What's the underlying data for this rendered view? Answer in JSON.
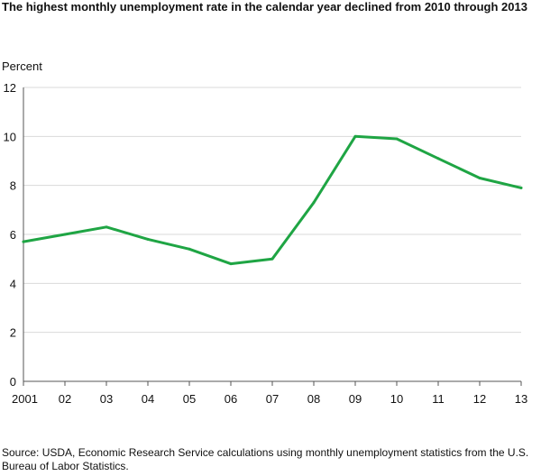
{
  "title": "The highest monthly unemployment rate in the calendar year declined from 2010 through 2013",
  "ylabel": "Percent",
  "source": "Source: USDA, Economic Research Service calculations using monthly unemployment statistics from the U.S. Bureau of Labor Statistics.",
  "colors": {
    "line": "#1fa544",
    "grid": "#d9d9d9",
    "axis": "#555555"
  },
  "chart_data": {
    "type": "line",
    "title": "The highest monthly unemployment rate in the calendar year declined from 2010 through 2013",
    "xlabel": "",
    "ylabel": "Percent",
    "categories": [
      "2001",
      "02",
      "03",
      "04",
      "05",
      "06",
      "07",
      "08",
      "09",
      "10",
      "11",
      "12",
      "13"
    ],
    "values": [
      5.7,
      6.0,
      6.3,
      5.8,
      5.4,
      4.8,
      5.0,
      7.3,
      10.0,
      9.9,
      9.1,
      8.3,
      7.9
    ],
    "ylim": [
      0,
      12
    ],
    "yticks": [
      0,
      2,
      4,
      6,
      8,
      10,
      12
    ],
    "grid": true
  }
}
